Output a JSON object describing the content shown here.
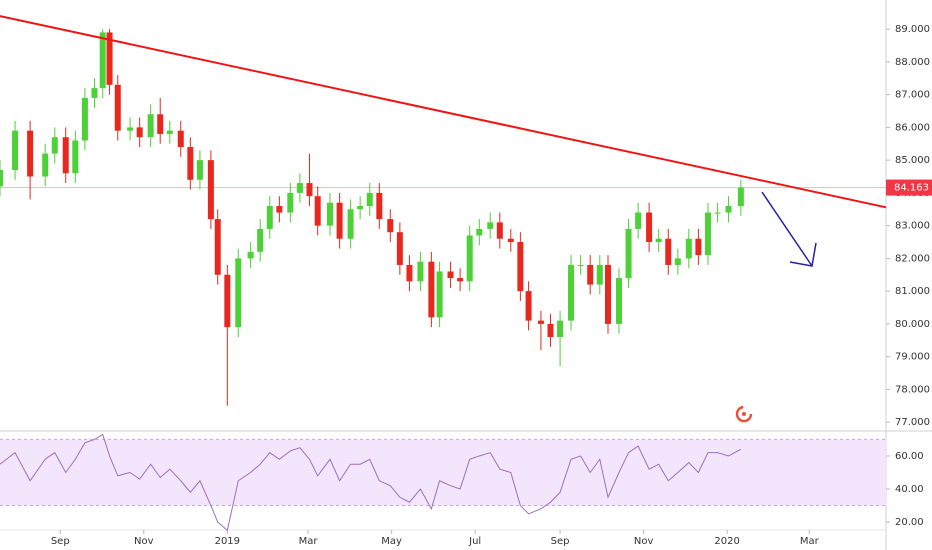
{
  "chart_data": {
    "type": "candlestick",
    "x": [
      -44,
      -33,
      -22,
      -11,
      -4,
      4,
      11,
      18,
      25,
      31,
      36,
      42,
      51,
      58,
      66,
      73,
      80,
      88,
      95,
      102,
      110,
      115,
      122,
      130,
      139,
      146,
      153,
      160,
      168,
      175,
      182,
      188,
      197,
      204,
      212,
      219,
      226,
      233,
      241,
      248,
      255,
      263,
      271,
      277,
      285,
      292,
      299,
      306,
      314,
      321,
      329,
      336,
      342,
      351,
      358,
      365,
      373,
      380,
      387,
      394,
      400,
      408,
      415,
      422,
      430,
      437,
      444,
      451,
      459,
      466,
      473,
      480,
      488,
      497
    ],
    "open": [
      84.2,
      84.7,
      85.9,
      84.5,
      85.2,
      85.7,
      84.6,
      85.6,
      86.9,
      87.2,
      88.9,
      87.3,
      85.9,
      86.0,
      85.7,
      86.4,
      85.8,
      85.9,
      85.4,
      84.4,
      85.0,
      83.2,
      81.5,
      79.9,
      82.0,
      82.2,
      82.9,
      83.6,
      83.4,
      84.0,
      84.3,
      83.9,
      83.0,
      83.7,
      82.6,
      83.5,
      83.6,
      84.0,
      83.2,
      82.8,
      81.8,
      81.3,
      81.9,
      80.2,
      81.6,
      81.4,
      81.3,
      82.7,
      82.9,
      83.1,
      82.6,
      82.5,
      81.0,
      80.1,
      80.0,
      79.6,
      80.1,
      81.8,
      81.8,
      81.2,
      81.8,
      80.0,
      81.4,
      82.9,
      83.4,
      82.5,
      82.6,
      81.8,
      82.0,
      82.6,
      82.1,
      83.4,
      83.4,
      83.6
    ],
    "high": [
      85.0,
      86.2,
      86.2,
      85.5,
      86.0,
      86.0,
      85.9,
      87.2,
      87.5,
      89.0,
      89.0,
      87.6,
      86.3,
      86.3,
      86.7,
      86.9,
      86.2,
      86.2,
      85.7,
      85.3,
      85.3,
      83.5,
      81.8,
      82.3,
      82.5,
      83.2,
      83.9,
      83.9,
      84.3,
      84.6,
      85.2,
      84.2,
      84.0,
      84.0,
      83.8,
      83.9,
      84.3,
      84.3,
      83.5,
      83.1,
      82.1,
      82.2,
      82.2,
      81.9,
      81.9,
      81.7,
      83.0,
      83.2,
      83.4,
      83.4,
      82.9,
      82.8,
      81.3,
      80.4,
      80.3,
      80.4,
      82.1,
      82.1,
      82.1,
      82.1,
      82.1,
      81.7,
      83.2,
      83.7,
      83.7,
      82.9,
      82.9,
      82.3,
      82.9,
      82.9,
      83.7,
      83.7,
      83.9,
      84.4
    ],
    "low": [
      83.9,
      84.4,
      83.8,
      84.2,
      84.9,
      84.3,
      84.3,
      85.3,
      86.6,
      86.9,
      87.0,
      85.6,
      85.6,
      85.4,
      85.4,
      85.5,
      85.5,
      85.1,
      84.1,
      84.1,
      82.9,
      81.2,
      77.5,
      79.6,
      81.7,
      81.9,
      82.6,
      83.1,
      83.1,
      83.7,
      83.6,
      82.7,
      82.7,
      82.3,
      82.3,
      83.2,
      83.3,
      82.9,
      82.5,
      81.5,
      81.0,
      81.0,
      79.9,
      79.9,
      81.1,
      81.0,
      81.0,
      82.4,
      82.6,
      82.3,
      82.2,
      80.7,
      79.8,
      79.2,
      79.3,
      78.7,
      79.8,
      81.5,
      80.9,
      80.9,
      79.7,
      79.7,
      81.1,
      82.6,
      82.2,
      82.2,
      81.5,
      81.5,
      81.7,
      81.8,
      81.8,
      83.1,
      83.1,
      83.3
    ],
    "close": [
      84.7,
      85.9,
      84.5,
      85.2,
      85.7,
      84.6,
      85.6,
      86.9,
      87.2,
      88.9,
      87.3,
      85.9,
      86.0,
      85.7,
      86.4,
      85.8,
      85.9,
      85.4,
      84.4,
      85.0,
      83.2,
      81.5,
      79.9,
      82.0,
      82.2,
      82.9,
      83.6,
      83.4,
      84.0,
      84.3,
      83.9,
      83.0,
      83.7,
      82.6,
      83.5,
      83.6,
      84.0,
      83.2,
      82.8,
      81.8,
      81.3,
      81.9,
      80.2,
      81.6,
      81.4,
      81.3,
      82.7,
      82.9,
      83.1,
      82.6,
      82.5,
      81.0,
      80.1,
      80.0,
      79.6,
      80.1,
      81.8,
      81.8,
      81.2,
      81.8,
      80.0,
      81.4,
      82.9,
      83.4,
      82.5,
      82.6,
      81.8,
      82.0,
      82.6,
      82.1,
      83.4,
      83.4,
      83.6,
      84.163
    ],
    "up_color": "#4cd137",
    "down_color": "#e8281e",
    "xlim": [
      -44,
      603
    ],
    "xticks": [
      {
        "value": 0,
        "label": "Sep"
      },
      {
        "value": 61,
        "label": "Nov"
      },
      {
        "value": 122,
        "label": "2019"
      },
      {
        "value": 181,
        "label": "Mar"
      },
      {
        "value": 242,
        "label": "May"
      },
      {
        "value": 303,
        "label": "Jul"
      },
      {
        "value": 365,
        "label": "Sep"
      },
      {
        "value": 426,
        "label": "Nov"
      },
      {
        "value": 487,
        "label": "2020"
      },
      {
        "value": 547,
        "label": "Mar"
      }
    ],
    "ylim": [
      76.76,
      89.89
    ],
    "yticks": [
      {
        "value": 77,
        "label": "77.000"
      },
      {
        "value": 78,
        "label": "78.000"
      },
      {
        "value": 79,
        "label": "79.000"
      },
      {
        "value": 80,
        "label": "80.000"
      },
      {
        "value": 81,
        "label": "81.000"
      },
      {
        "value": 82,
        "label": "82.000"
      },
      {
        "value": 83,
        "label": "83.000"
      },
      {
        "value": 84,
        "label": "84.000"
      },
      {
        "value": 85,
        "label": "85.000"
      },
      {
        "value": 86,
        "label": "86.000"
      },
      {
        "value": 87,
        "label": "87.000"
      },
      {
        "value": 88,
        "label": "88.000"
      },
      {
        "value": 89,
        "label": "89.000"
      }
    ],
    "last_price": 84.163,
    "last_price_color": "#f23645",
    "trendline": {
      "color": "#f01414",
      "x": [
        -44,
        603
      ],
      "y": [
        89.4,
        83.56
      ]
    },
    "rsi": {
      "color": "#9b6fc4",
      "band_color": "#f3e5fb",
      "values": [
        55,
        62,
        45,
        58,
        62,
        50,
        58,
        68,
        70,
        73,
        60,
        48,
        50,
        46,
        55,
        47,
        52,
        45,
        38,
        45,
        30,
        20,
        15,
        45,
        50,
        55,
        62,
        58,
        63,
        65,
        58,
        48,
        58,
        45,
        55,
        55,
        58,
        45,
        42,
        35,
        32,
        40,
        28,
        45,
        42,
        40,
        58,
        60,
        62,
        52,
        50,
        30,
        25,
        28,
        32,
        38,
        58,
        60,
        50,
        58,
        35,
        50,
        62,
        66,
        52,
        55,
        45,
        50,
        56,
        50,
        62,
        62,
        60,
        64
      ],
      "ylim": [
        15.2,
        74.5
      ],
      "band": [
        30,
        70
      ],
      "yticks": [
        {
          "value": 20,
          "label": "20.00"
        },
        {
          "value": 40,
          "label": "40.00"
        },
        {
          "value": 60,
          "label": "60.00"
        }
      ]
    }
  }
}
